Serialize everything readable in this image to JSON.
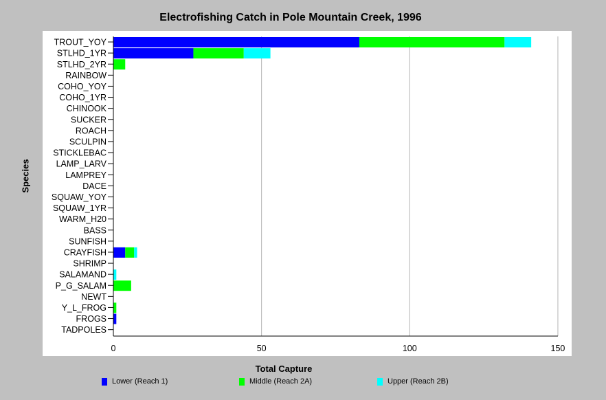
{
  "chart_data": {
    "type": "bar",
    "orientation": "horizontal",
    "stacked": true,
    "title": "Electrofishing Catch in Pole Mountain Creek, 1996",
    "xlabel": "Total Capture",
    "ylabel": "Species",
    "xlim": [
      0,
      150
    ],
    "xticks": [
      0,
      50,
      100,
      150
    ],
    "grid": true,
    "legend_position": "bottom",
    "categories": [
      "TROUT_YOY",
      "STLHD_1YR",
      "STLHD_2YR",
      "RAINBOW",
      "COHO_YOY",
      "COHO_1YR",
      "CHINOOK",
      "SUCKER",
      "ROACH",
      "SCULPIN",
      "STICKLEBAC",
      "LAMP_LARV",
      "LAMPREY",
      "DACE",
      "SQUAW_YOY",
      "SQUAW_1YR",
      "WARM_H20",
      "BASS",
      "SUNFISH",
      "CRAYFISH",
      "SHRIMP",
      "SALAMAND",
      "P_G_SALAM",
      "NEWT",
      "Y_L_FROG",
      "FROGS",
      "TADPOLES"
    ],
    "series": [
      {
        "name": "Lower (Reach 1)",
        "color": "#0000ff",
        "values": [
          83,
          27,
          0,
          0,
          0,
          0,
          0,
          0,
          0,
          0,
          0,
          0,
          0,
          0,
          0,
          0,
          0,
          0,
          0,
          4,
          0,
          0,
          0,
          0,
          0,
          1,
          0
        ]
      },
      {
        "name": "Middle (Reach 2A)",
        "color": "#00ff00",
        "values": [
          49,
          17,
          4,
          0,
          0,
          0,
          0,
          0,
          0,
          0,
          0,
          0,
          0,
          0,
          0,
          0,
          0,
          0,
          0,
          3,
          0,
          0,
          6,
          0,
          1,
          0,
          0
        ]
      },
      {
        "name": "Upper (Reach 2B)",
        "color": "#00ffff",
        "values": [
          9,
          9,
          0,
          0,
          0,
          0,
          0,
          0,
          0,
          0,
          0,
          0,
          0,
          0,
          0,
          0,
          0,
          0,
          0,
          1,
          0,
          1,
          0,
          0,
          0,
          0,
          0
        ]
      }
    ]
  }
}
